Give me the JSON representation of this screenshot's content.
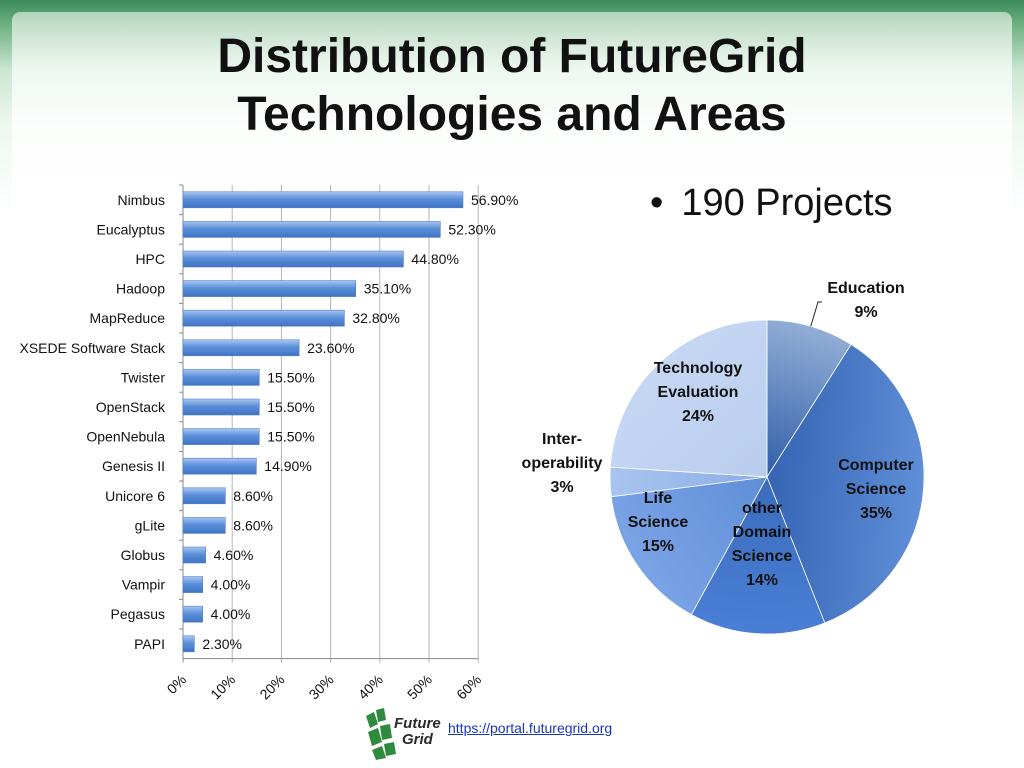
{
  "title_line1": "Distribution of FutureGrid",
  "title_line2": "Technologies and Areas",
  "bullet_text": "190 Projects",
  "footer": {
    "logo_line1": "Future",
    "logo_line2": "Grid",
    "url": "https://portal.futuregrid.org"
  },
  "chart_data": [
    {
      "type": "bar",
      "orientation": "horizontal",
      "categories": [
        "Nimbus",
        "Eucalyptus",
        "HPC",
        "Hadoop",
        "MapReduce",
        "XSEDE Software Stack",
        "Twister",
        "OpenStack",
        "OpenNebula",
        "Genesis II",
        "Unicore 6",
        "gLite",
        "Globus",
        "Vampir",
        "Pegasus",
        "PAPI"
      ],
      "values": [
        56.9,
        52.3,
        44.8,
        35.1,
        32.8,
        23.6,
        15.5,
        15.5,
        15.5,
        14.9,
        8.6,
        8.6,
        4.6,
        4.0,
        4.0,
        2.3
      ],
      "value_labels": [
        "56.90%",
        "52.30%",
        "44.80%",
        "35.10%",
        "32.80%",
        "23.60%",
        "15.50%",
        "15.50%",
        "15.50%",
        "14.90%",
        "8.60%",
        "8.60%",
        "4.60%",
        "4.00%",
        "4.00%",
        "2.30%"
      ],
      "xlim": [
        0,
        60
      ],
      "xticks": [
        "0%",
        "10%",
        "20%",
        "30%",
        "40%",
        "50%",
        "60%"
      ],
      "grid": true,
      "bar_color": "#5b8fd9"
    },
    {
      "type": "pie",
      "slices": [
        {
          "label": "Education",
          "pct_label": "9%",
          "value": 9,
          "color": "#93aed6"
        },
        {
          "label": "Computer Science",
          "pct_label": "35%",
          "value": 35,
          "color": "#5f8fd8"
        },
        {
          "label": "other Domain Science",
          "pct_label": "14%",
          "value": 14,
          "color": "#4a7fd6"
        },
        {
          "label": "Life Science",
          "pct_label": "15%",
          "value": 15,
          "color": "#7ba3e6"
        },
        {
          "label": "Inter-operability",
          "pct_label": "3%",
          "value": 3,
          "color": "#a9c4f0"
        },
        {
          "label": "Technology Evaluation",
          "pct_label": "24%",
          "value": 24,
          "color": "#c5d7f3"
        }
      ],
      "label_lines": [
        [
          "Education",
          "9%"
        ],
        [
          "Computer",
          "Science",
          "35%"
        ],
        [
          "other",
          "Domain",
          "Science",
          "14%"
        ],
        [
          "Life",
          "Science",
          "15%"
        ],
        [
          "Inter-",
          "operability",
          "3%"
        ],
        [
          "Technology",
          "Evaluation",
          "24%"
        ]
      ]
    }
  ]
}
